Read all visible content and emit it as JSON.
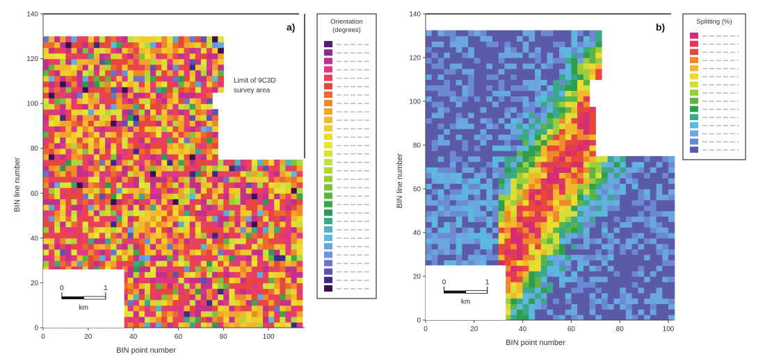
{
  "chart_data": [
    {
      "type": "heatmap",
      "panel_label": "a)",
      "xlabel": "BIN point number",
      "ylabel": "BIN line number",
      "xlim": [
        0,
        116
      ],
      "ylim": [
        0,
        140
      ],
      "x_ticks": [
        "0",
        "20",
        "40",
        "60",
        "80",
        "100"
      ],
      "y_ticks": [
        "0",
        "20",
        "40",
        "60",
        "80",
        "100",
        "120",
        "140"
      ],
      "survey_outline": [
        [
          0,
          131
        ],
        [
          80,
          131
        ],
        [
          80,
          106
        ],
        [
          74,
          106
        ],
        [
          74,
          97
        ],
        [
          78,
          97
        ],
        [
          78,
          76
        ],
        [
          116,
          76
        ],
        [
          116,
          0
        ],
        [
          0,
          0
        ]
      ],
      "annotation": [
        "Limit of 9C3D",
        "survey area"
      ],
      "scale_bar": {
        "ticks": [
          "0",
          "1"
        ],
        "unit": "km"
      },
      "legend": {
        "title": [
          "Orientation",
          "(degrees)"
        ],
        "colors": [
          "#5a1a6e",
          "#8c2a86",
          "#c2308c",
          "#de3884",
          "#e8405e",
          "#e8473c",
          "#ec6a2e",
          "#ef8a2a",
          "#f2a32b",
          "#f4b92b",
          "#f2cc2c",
          "#eedb31",
          "#e7e535",
          "#d8e33a",
          "#c6de3e",
          "#b1d63e",
          "#9acd3b",
          "#7fc23c",
          "#5cb543",
          "#3ba64a",
          "#2d9b4f",
          "#3aa889",
          "#4fb4c0",
          "#5cb8de",
          "#62a9e0",
          "#6b93d8",
          "#6d74c4",
          "#5f52a8",
          "#3a2c86",
          "#3b104e"
        ]
      }
    },
    {
      "type": "heatmap",
      "panel_label": "b)",
      "xlabel": "BIN point number",
      "ylabel": "BIN line number",
      "xlim": [
        0,
        102
      ],
      "ylim": [
        0,
        140
      ],
      "x_ticks": [
        "0",
        "20",
        "40",
        "60",
        "80",
        "100"
      ],
      "y_ticks": [
        "0",
        "20",
        "40",
        "60",
        "80",
        "100",
        "120",
        "140"
      ],
      "survey_outline": [
        [
          0,
          132
        ],
        [
          72,
          132
        ],
        [
          72,
          110
        ],
        [
          68,
          110
        ],
        [
          68,
          98
        ],
        [
          70,
          98
        ],
        [
          70,
          76
        ],
        [
          102,
          76
        ],
        [
          102,
          0
        ],
        [
          0,
          0
        ]
      ],
      "scale_bar": {
        "ticks": [
          "0",
          "1"
        ],
        "unit": "km"
      },
      "legend": {
        "title": [
          "Splitting (%)"
        ],
        "colors": [
          "#d62c72",
          "#e03a5a",
          "#e8473c",
          "#ef8a2a",
          "#f2b82c",
          "#eedb31",
          "#d4e03a",
          "#9ccd3b",
          "#5cb543",
          "#2f9f4e",
          "#3aa889",
          "#5cb8de",
          "#6aa6e0",
          "#6c8ad4",
          "#5a5aa8"
        ]
      }
    }
  ]
}
